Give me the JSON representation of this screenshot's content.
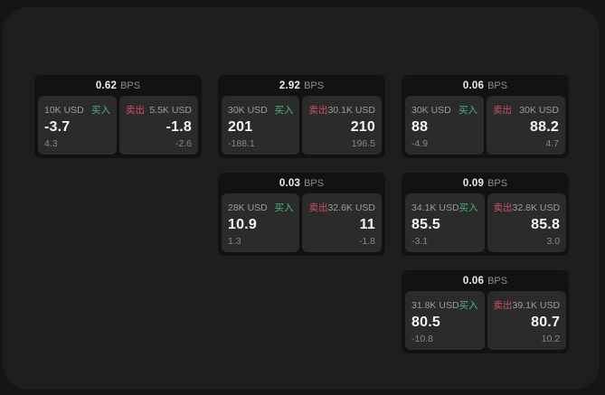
{
  "theme": {
    "page_bg": "#151515",
    "container_bg": "#1e1e1e",
    "card_bg": "#121212",
    "panel_bg": "#2b2b2b",
    "text_primary": "#f4f4f4",
    "text_secondary": "#9c9c9c",
    "buy_color": "#42b87d",
    "sell_color": "#cb5163"
  },
  "labels": {
    "bps_unit": "BPS",
    "buy": "买入",
    "sell": "卖出"
  },
  "cards": [
    {
      "bps": "0.62",
      "buy": {
        "size": "10K USD",
        "price": "-3.7",
        "delta": "4.3"
      },
      "sell": {
        "size": "5.5K USD",
        "price": "-1.8",
        "delta": "-2.6"
      }
    },
    {
      "bps": "2.92",
      "buy": {
        "size": "30K USD",
        "price": "201",
        "delta": "-188.1"
      },
      "sell": {
        "size": "30.1K USD",
        "price": "210",
        "delta": "196.5"
      }
    },
    {
      "bps": "0.06",
      "buy": {
        "size": "30K USD",
        "price": "88",
        "delta": "-4.9"
      },
      "sell": {
        "size": "30K USD",
        "price": "88.2",
        "delta": "4.7"
      }
    },
    {
      "bps": "0.03",
      "buy": {
        "size": "28K USD",
        "price": "10.9",
        "delta": "1.3"
      },
      "sell": {
        "size": "32.6K USD",
        "price": "11",
        "delta": "-1.8"
      }
    },
    {
      "bps": "0.09",
      "buy": {
        "size": "34.1K USD",
        "price": "85.5",
        "delta": "-3.1"
      },
      "sell": {
        "size": "32.8K USD",
        "price": "85.8",
        "delta": "3.0"
      }
    },
    {
      "bps": "0.06",
      "buy": {
        "size": "31.8K USD",
        "price": "80.5",
        "delta": "-10.8"
      },
      "sell": {
        "size": "39.1K USD",
        "price": "80.7",
        "delta": "10.2"
      }
    }
  ]
}
